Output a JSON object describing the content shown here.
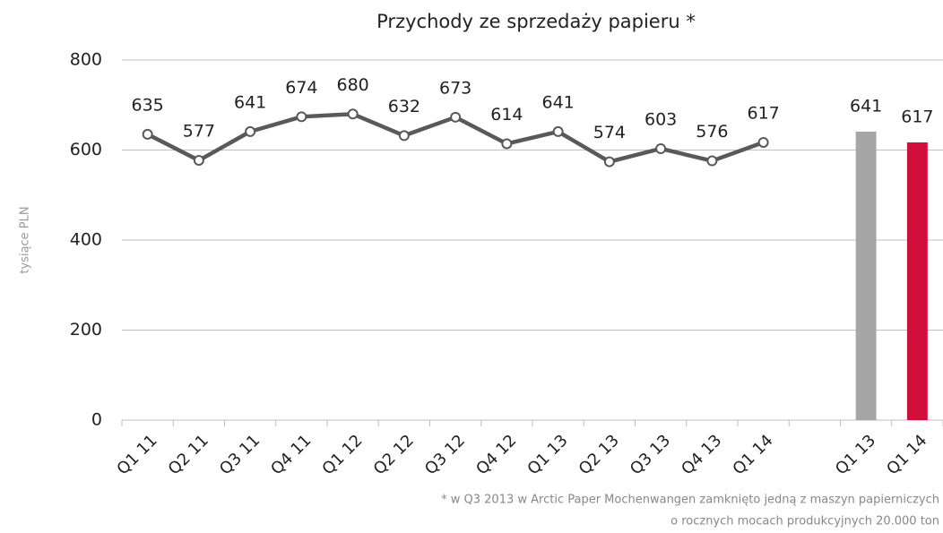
{
  "chart_data": {
    "type": "line",
    "title": "Przychody ze sprzedaży papieru *",
    "ylabel": "tysiące PLN",
    "footnote": [
      "* w Q3 2013 w Arctic Paper Mochenwangen zamknięto jedną z maszyn papierniczych",
      "o rocznych mocach produkcyjnych 20.000 ton"
    ],
    "categories": [
      "Q1 11",
      "Q2 11",
      "Q3 11",
      "Q4 11",
      "Q1 12",
      "Q2 12",
      "Q3 12",
      "Q4 12",
      "Q1 13",
      "Q2 13",
      "Q3 13",
      "Q4 13",
      "Q1 14",
      null,
      "Q1 13",
      "Q1 14"
    ],
    "series": [
      {
        "type": "line",
        "color": "#595959",
        "values": [
          635,
          577,
          641,
          674,
          680,
          632,
          673,
          614,
          641,
          574,
          603,
          576,
          617,
          null,
          null,
          null
        ]
      },
      {
        "type": "bar",
        "colors": [
          "#a6a6a6",
          "#d0103a"
        ],
        "values": [
          null,
          null,
          null,
          null,
          null,
          null,
          null,
          null,
          null,
          null,
          null,
          null,
          null,
          null,
          641,
          617
        ]
      }
    ],
    "ylim": [
      0,
      800
    ],
    "yticks": [
      0,
      200,
      400,
      600,
      800
    ],
    "grid": true
  }
}
